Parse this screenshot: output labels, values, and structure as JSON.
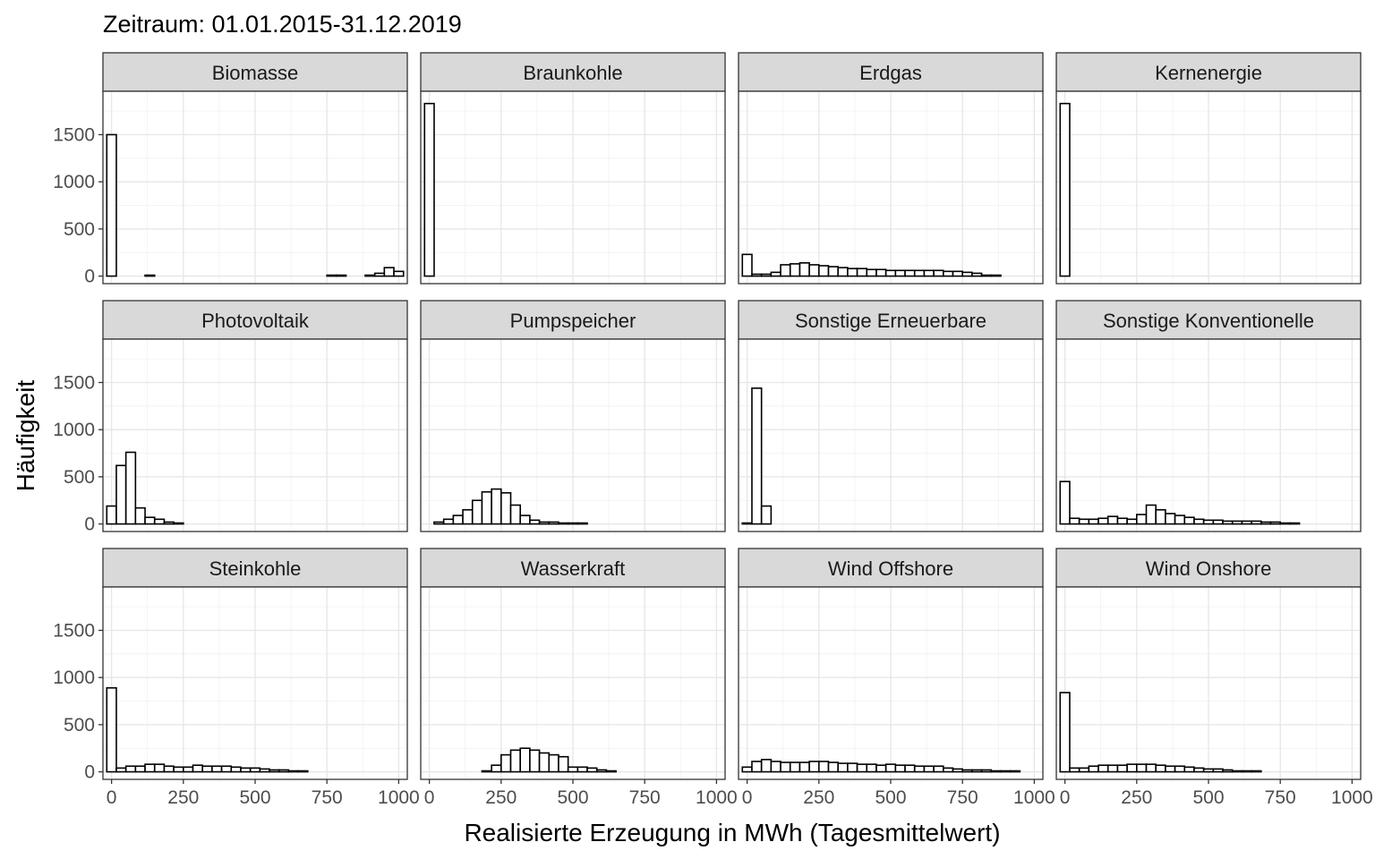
{
  "chart_data": {
    "type": "bar",
    "subtype": "faceted-histogram",
    "title": "Zeitraum: 01.01.2015-31.12.2019",
    "xlabel": "Realisierte Erzeugung in MWh (Tagesmittelwert)",
    "ylabel": "Häufigkeit",
    "xlim": [
      -30,
      1030
    ],
    "ylim": [
      -80,
      1960
    ],
    "x_ticks": [
      0,
      250,
      500,
      750,
      1000
    ],
    "y_ticks": [
      0,
      500,
      1000,
      1500
    ],
    "bin_centers": [
      0,
      33.33,
      66.67,
      100,
      133.33,
      166.67,
      200,
      233.33,
      266.67,
      300,
      333.33,
      366.67,
      400,
      433.33,
      466.67,
      500,
      533.33,
      566.67,
      600,
      633.33,
      666.67,
      700,
      733.33,
      766.67,
      800,
      833.33,
      866.67,
      900,
      933.33,
      966.67,
      1000
    ],
    "grid": true,
    "facet_layout": {
      "rows": 3,
      "cols": 4
    },
    "facets": [
      {
        "name": "Biomasse",
        "counts": [
          1500,
          0,
          0,
          0,
          10,
          0,
          0,
          0,
          0,
          0,
          0,
          0,
          0,
          0,
          0,
          0,
          0,
          0,
          0,
          0,
          0,
          0,
          0,
          10,
          10,
          0,
          0,
          10,
          30,
          90,
          50
        ]
      },
      {
        "name": "Braunkohle",
        "counts": [
          1830,
          0,
          0,
          0,
          0,
          0,
          0,
          0,
          0,
          0,
          0,
          0,
          0,
          0,
          0,
          0,
          0,
          0,
          0,
          0,
          0,
          0,
          0,
          0,
          0,
          0,
          0,
          0,
          0,
          0,
          0
        ]
      },
      {
        "name": "Erdgas",
        "counts": [
          230,
          20,
          20,
          40,
          120,
          130,
          140,
          120,
          110,
          100,
          90,
          80,
          80,
          70,
          70,
          60,
          60,
          60,
          60,
          60,
          60,
          50,
          50,
          40,
          30,
          10,
          10,
          0,
          0,
          0,
          0
        ]
      },
      {
        "name": "Kernenergie",
        "counts": [
          1830,
          0,
          0,
          0,
          0,
          0,
          0,
          0,
          0,
          0,
          0,
          0,
          0,
          0,
          0,
          0,
          0,
          0,
          0,
          0,
          0,
          0,
          0,
          0,
          0,
          0,
          0,
          0,
          0,
          0,
          0
        ]
      },
      {
        "name": "Photovoltaik",
        "counts": [
          190,
          620,
          760,
          170,
          70,
          50,
          20,
          10,
          0,
          0,
          0,
          0,
          0,
          0,
          0,
          0,
          0,
          0,
          0,
          0,
          0,
          0,
          0,
          0,
          0,
          0,
          0,
          0,
          0,
          0,
          0
        ]
      },
      {
        "name": "Pumpspeicher",
        "counts": [
          0,
          20,
          50,
          90,
          150,
          250,
          340,
          370,
          330,
          200,
          90,
          40,
          20,
          20,
          10,
          10,
          10,
          0,
          0,
          0,
          0,
          0,
          0,
          0,
          0,
          0,
          0,
          0,
          0,
          0,
          0
        ]
      },
      {
        "name": "Sonstige Erneuerbare",
        "counts": [
          10,
          1440,
          190,
          0,
          0,
          0,
          0,
          0,
          0,
          0,
          0,
          0,
          0,
          0,
          0,
          0,
          0,
          0,
          0,
          0,
          0,
          0,
          0,
          0,
          0,
          0,
          0,
          0,
          0,
          0,
          0
        ]
      },
      {
        "name": "Sonstige Konventionelle",
        "counts": [
          450,
          60,
          50,
          50,
          60,
          80,
          60,
          50,
          100,
          200,
          150,
          110,
          90,
          70,
          50,
          40,
          40,
          30,
          30,
          30,
          30,
          20,
          20,
          10,
          10,
          0,
          0,
          0,
          0,
          0,
          0
        ]
      },
      {
        "name": "Steinkohle",
        "counts": [
          890,
          40,
          60,
          60,
          80,
          80,
          60,
          50,
          50,
          70,
          60,
          60,
          60,
          50,
          40,
          40,
          30,
          20,
          20,
          10,
          10,
          0,
          0,
          0,
          0,
          0,
          0,
          0,
          0,
          0,
          0
        ]
      },
      {
        "name": "Wasserkraft",
        "counts": [
          0,
          0,
          0,
          0,
          0,
          0,
          10,
          70,
          180,
          230,
          250,
          230,
          200,
          180,
          160,
          50,
          50,
          40,
          20,
          10,
          0,
          0,
          0,
          0,
          0,
          0,
          0,
          0,
          0,
          0,
          0
        ]
      },
      {
        "name": "Wind Offshore",
        "counts": [
          50,
          110,
          130,
          110,
          100,
          100,
          100,
          110,
          110,
          100,
          90,
          90,
          80,
          80,
          70,
          80,
          70,
          70,
          60,
          60,
          60,
          40,
          30,
          20,
          20,
          20,
          10,
          10,
          10,
          0,
          0
        ]
      },
      {
        "name": "Wind Onshore",
        "counts": [
          840,
          40,
          40,
          60,
          70,
          70,
          70,
          80,
          80,
          80,
          70,
          60,
          60,
          50,
          40,
          30,
          30,
          20,
          10,
          10,
          10,
          0,
          0,
          0,
          0,
          0,
          0,
          0,
          0,
          0,
          0
        ]
      }
    ]
  }
}
